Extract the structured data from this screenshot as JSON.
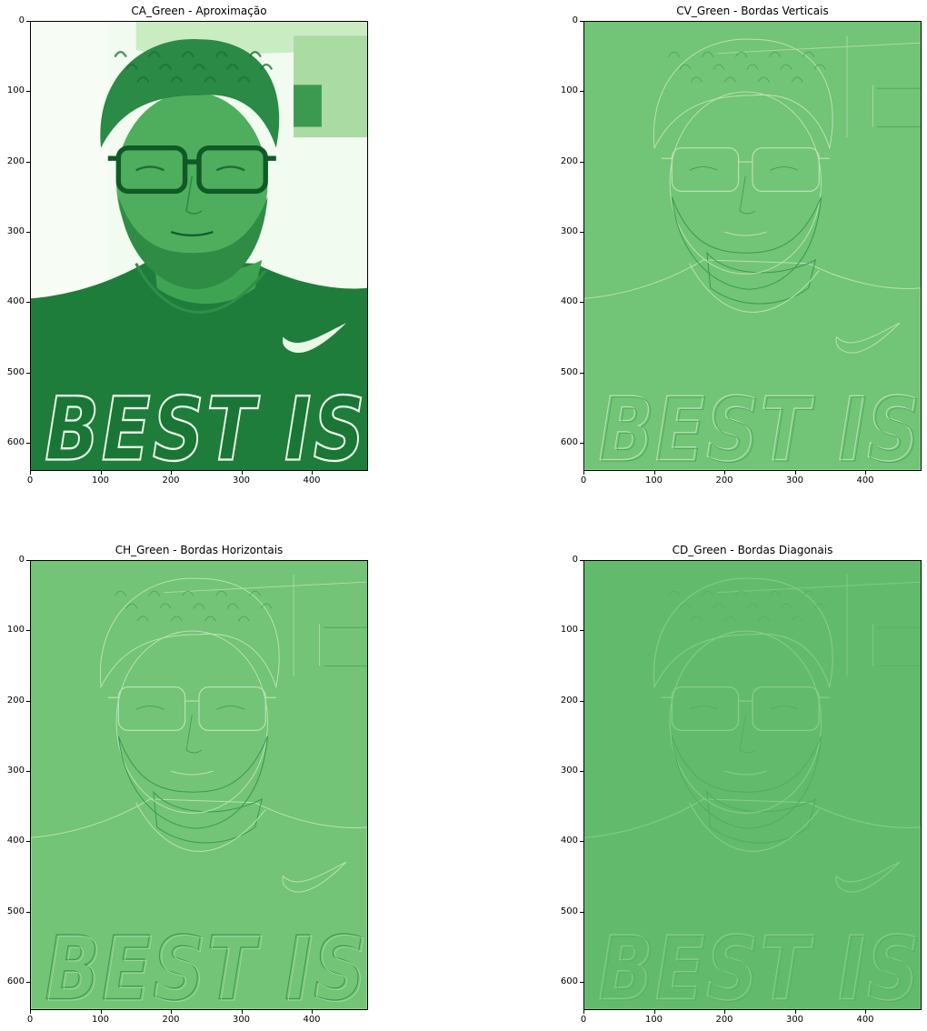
{
  "figure": {
    "axes": [
      {
        "title": "CA_Green - Aproximação",
        "style": "approx"
      },
      {
        "title": "CV_Green - Bordas Verticais",
        "style": "vertical"
      },
      {
        "title": "CH_Green - Bordas Horizontais",
        "style": "horizontal"
      },
      {
        "title": "CD_Green - Bordas Diagonais",
        "style": "diagonal"
      }
    ],
    "y_ticks": [
      "0",
      "100",
      "200",
      "300",
      "400",
      "500",
      "600"
    ],
    "x_ticks": [
      "0",
      "100",
      "200",
      "300",
      "400"
    ],
    "shirt_text": "BEST IS",
    "colors": {
      "approx_bg": "#f2fbef",
      "approx_dark": "#1d7a3a",
      "vertical_bg": "#72c476",
      "horizontal_bg": "#73c476",
      "diagonal_bg": "#62bb6d",
      "edge_light": "#b7e2b1",
      "edge_dark": "#3a9a4f"
    }
  }
}
